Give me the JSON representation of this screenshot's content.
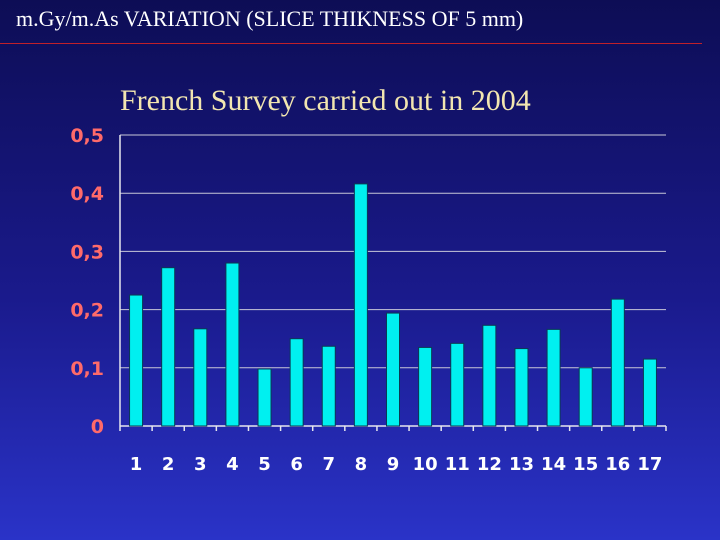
{
  "slide": {
    "title": "m.Gy/m.As VARIATION (SLICE THIKNESS OF 5 mm)"
  },
  "colors": {
    "background_top": "#0d0d55",
    "background_bottom": "#2a33c8",
    "bar": "#00f0f0",
    "title_rule": "#c0202a",
    "y_tick_labels": "#ff6a6a",
    "chart_title": "#f2e6b0"
  },
  "chart_data": {
    "type": "bar",
    "title": "French Survey carried out in 2004",
    "xlabel": "",
    "ylabel": "",
    "categories": [
      "1",
      "2",
      "3",
      "4",
      "5",
      "6",
      "7",
      "8",
      "9",
      "10",
      "11",
      "12",
      "13",
      "14",
      "15",
      "16",
      "17"
    ],
    "values": [
      0.225,
      0.272,
      0.167,
      0.28,
      0.098,
      0.15,
      0.137,
      0.416,
      0.194,
      0.135,
      0.142,
      0.173,
      0.133,
      0.166,
      0.1,
      0.218,
      0.115
    ],
    "ylim": [
      0,
      0.5
    ],
    "yticks": [
      0,
      0.1,
      0.2,
      0.3,
      0.4,
      0.5
    ],
    "ytick_labels": [
      "0",
      "0,1",
      "0,2",
      "0,3",
      "0,4",
      "0,5"
    ],
    "grid": true,
    "legend": "none"
  }
}
